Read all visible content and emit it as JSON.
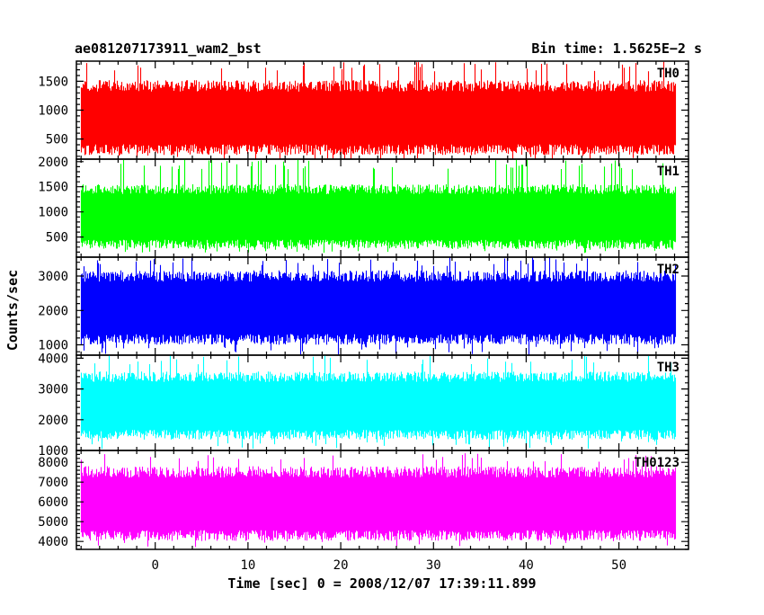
{
  "header": {
    "title": "ae081207173911_wam2_bst",
    "bin_time": "Bin time: 1.5625E−2 s"
  },
  "chart_data": {
    "type": "line",
    "title": "ae081207173911_wam2_bst",
    "ylabel": "Counts/sec",
    "xlabel": "Time [sec] 0 = 2008/12/07 17:39:11.899",
    "x_range": [
      -8,
      56
    ],
    "xlim": [
      -8.5,
      57.5
    ],
    "x_ticks": [
      0,
      10,
      20,
      30,
      40,
      50
    ],
    "x_tick_labels": [
      "0",
      "10",
      "20",
      "30",
      "40",
      "50"
    ],
    "x_minor_step": 2,
    "bin_time_s": 0.015625,
    "grid": false,
    "panels": [
      {
        "name": "TH0",
        "color": "#ff0000",
        "ylim": [
          150,
          1850
        ],
        "y_ticks": [
          500,
          1000,
          1500
        ],
        "y_tick_labels": [
          "500",
          "1000",
          "1500"
        ],
        "y_minor_step": 100,
        "typical_range": [
          280,
          1450
        ],
        "extremes": [
          130,
          1850
        ]
      },
      {
        "name": "TH1",
        "color": "#00ff00",
        "ylim": [
          100,
          2050
        ],
        "y_ticks": [
          500,
          1000,
          1500,
          2000
        ],
        "y_tick_labels": [
          "500",
          "1000",
          "1500",
          "2000"
        ],
        "y_minor_step": 100,
        "typical_range": [
          320,
          1480
        ],
        "extremes": [
          180,
          2050
        ]
      },
      {
        "name": "TH2",
        "color": "#0000ff",
        "ylim": [
          700,
          3550
        ],
        "y_ticks": [
          1000,
          2000,
          3000
        ],
        "y_tick_labels": [
          "1000",
          "2000",
          "3000"
        ],
        "y_minor_step": 200,
        "typical_range": [
          1100,
          3050
        ],
        "extremes": [
          700,
          3550
        ]
      },
      {
        "name": "TH3",
        "color": "#00ffff",
        "ylim": [
          1000,
          4100
        ],
        "y_ticks": [
          1000,
          2000,
          3000,
          4000
        ],
        "y_tick_labels": [
          "1000",
          "2000",
          "3000",
          "4000"
        ],
        "y_minor_step": 200,
        "typical_range": [
          1450,
          3450
        ],
        "extremes": [
          1050,
          4100
        ]
      },
      {
        "name": "TH0123",
        "color": "#ff00ff",
        "ylim": [
          3600,
          8600
        ],
        "y_ticks": [
          4000,
          5000,
          6000,
          7000,
          8000
        ],
        "y_tick_labels": [
          "4000",
          "5000",
          "6000",
          "7000",
          "8000"
        ],
        "y_minor_step": 200,
        "typical_range": [
          4200,
          7600
        ],
        "extremes": [
          3700,
          8500
        ]
      }
    ]
  }
}
